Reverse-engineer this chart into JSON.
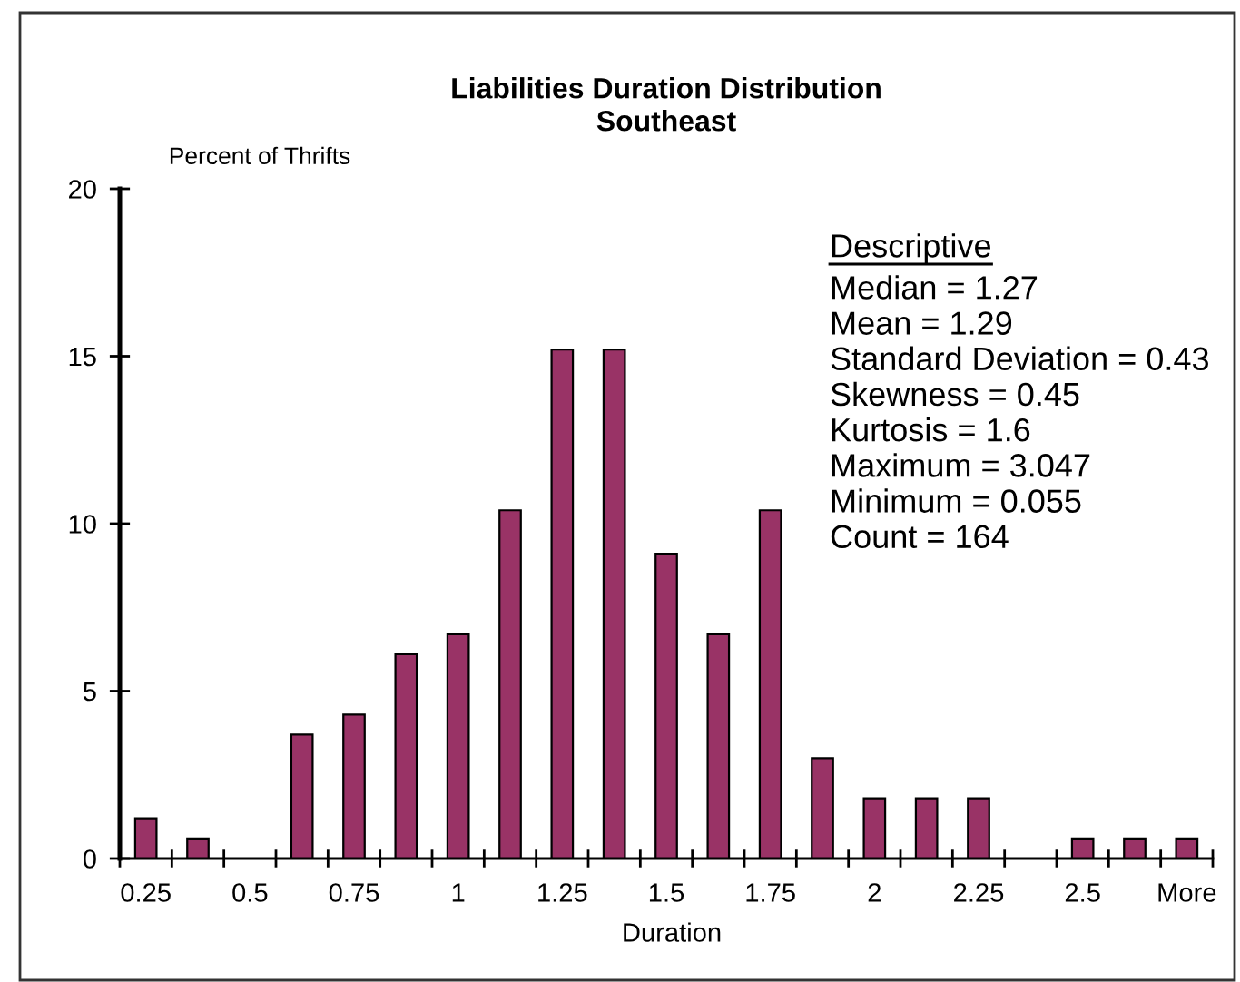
{
  "chart_data": {
    "type": "bar",
    "title": "Liabilities Duration Distribution",
    "subtitle": "Southeast",
    "xlabel": "Duration",
    "ylabel": "Percent of Thrifts",
    "categories": [
      "0.25",
      null,
      "0.5",
      null,
      "0.75",
      null,
      "1",
      null,
      "1.25",
      null,
      "1.5",
      null,
      "1.75",
      null,
      "2",
      null,
      "2.25",
      null,
      "2.5",
      null,
      "More"
    ],
    "values": [
      1.2,
      0.6,
      0,
      3.7,
      4.3,
      6.1,
      6.7,
      10.4,
      15.2,
      15.2,
      9.1,
      6.7,
      10.4,
      3.0,
      1.8,
      1.8,
      1.8,
      0,
      0.6,
      0.6,
      0.6
    ],
    "color": "#993366",
    "ylim": [
      0,
      20
    ],
    "yticks": [
      0,
      5,
      10,
      15,
      20
    ],
    "annotations": [
      "Descriptive",
      "Median = 1.27",
      "Mean = 1.29",
      "Standard Deviation = 0.43",
      "Skewness = 0.45",
      "Kurtosis = 1.6",
      "Maximum = 3.047",
      "Minimum = 0.055",
      "Count = 164"
    ]
  }
}
